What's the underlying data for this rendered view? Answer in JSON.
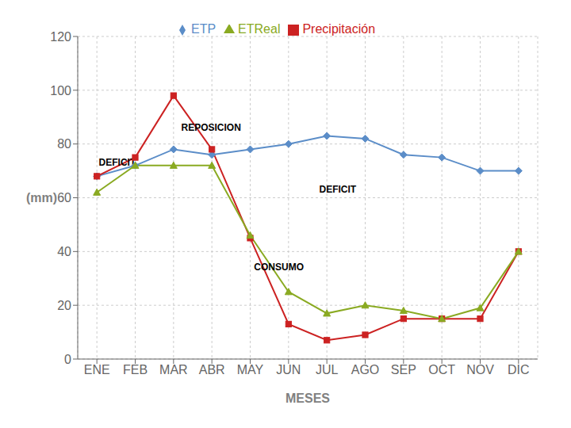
{
  "chart_data": {
    "type": "line",
    "xlabel": "MESES",
    "ylabel": "(mm)",
    "categories": [
      "ENE",
      "FEB",
      "MAR",
      "ABR",
      "MAY",
      "JUN",
      "JUL",
      "AGO",
      "SEP",
      "OCT",
      "NOV",
      "DIC"
    ],
    "series": [
      {
        "name": "ETP",
        "color": "#5B8DC8",
        "marker": "diamond",
        "values": [
          68,
          72,
          78,
          76,
          78,
          80,
          83,
          82,
          76,
          75,
          70,
          70
        ]
      },
      {
        "name": "Precipitación",
        "color": "#CC2222",
        "marker": "square",
        "values": [
          68,
          75,
          98,
          78,
          45,
          13,
          7,
          9,
          15,
          15,
          15,
          40
        ]
      },
      {
        "name": "ETReal",
        "color": "#8AAA22",
        "marker": "triangle",
        "values": [
          62,
          72,
          72,
          72,
          46,
          25,
          17,
          20,
          18,
          15,
          19,
          40
        ]
      }
    ],
    "ylim": [
      0,
      120
    ],
    "yticks": [
      0,
      20,
      40,
      60,
      80,
      100,
      120
    ],
    "grid": true,
    "legend": "top",
    "annotations": [
      {
        "text": "REPOSICION",
        "x": 2.2,
        "y": 85
      },
      {
        "text": "DEFICIT",
        "x": 0.05,
        "y": 72
      },
      {
        "text": "DEFICIT",
        "x": 5.8,
        "y": 62
      },
      {
        "text": "CONSUMO",
        "x": 4.1,
        "y": 33
      }
    ]
  }
}
